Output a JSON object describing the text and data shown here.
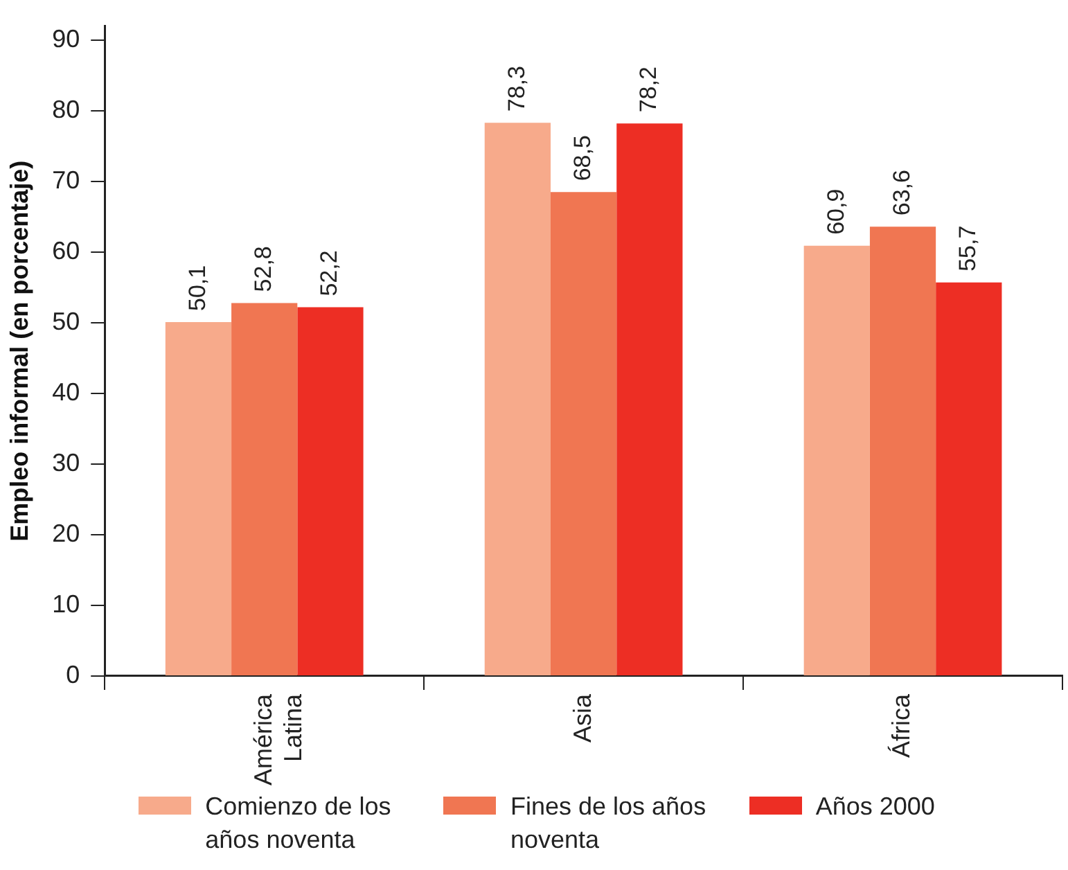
{
  "chart_data": {
    "type": "bar",
    "ylabel": "Empleo informal (en porcentaje)",
    "categories": [
      "América Latina",
      "Asia",
      "África"
    ],
    "series": [
      {
        "name": "Comienzo de los años noventa",
        "color": "#f7aa8b",
        "values": [
          50.1,
          78.3,
          60.9
        ],
        "value_labels": [
          "50,1",
          "78,3",
          "60,9"
        ]
      },
      {
        "name": "Fines de los años noventa",
        "color": "#f07652",
        "values": [
          52.8,
          68.5,
          63.6
        ],
        "value_labels": [
          "52,8",
          "68,5",
          "63,6"
        ]
      },
      {
        "name": "Años 2000",
        "color": "#ed2e24",
        "values": [
          52.2,
          78.2,
          55.7
        ],
        "value_labels": [
          "52,2",
          "78,2",
          "55,7"
        ]
      }
    ],
    "ylim": [
      0,
      92
    ],
    "yticks": [
      0,
      10,
      20,
      30,
      40,
      50,
      60,
      70,
      80,
      90
    ],
    "grid": false,
    "legend": "bottom"
  }
}
